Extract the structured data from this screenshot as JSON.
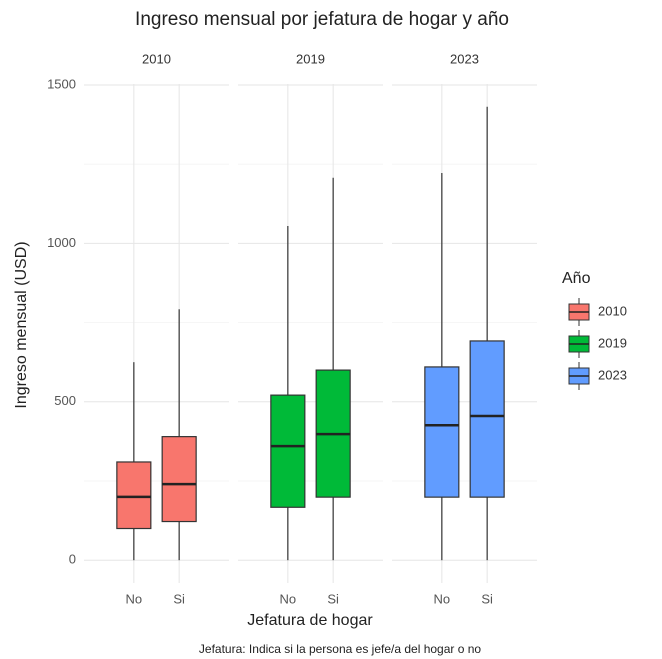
{
  "chart_data": {
    "type": "boxplot",
    "title": "Ingreso mensual por jefatura de hogar y año",
    "xlabel": "Jefatura de hogar",
    "ylabel": "Ingreso mensual (USD)",
    "caption": "Jefatura: Indica si la persona es jefe/a del hogar o no",
    "legend_title": "Año",
    "ylim": [
      -72,
      1503
    ],
    "yticks": [
      0,
      500,
      1000,
      1500
    ],
    "yminor": [
      250,
      750,
      1250
    ],
    "grid": true,
    "facets": [
      {
        "name": "2010",
        "color": "#F8766D",
        "categories": [
          "No",
          "Si"
        ],
        "boxes": [
          {
            "min": 0,
            "q1": 100,
            "median": 200,
            "q3": 310,
            "max": 625
          },
          {
            "min": 0,
            "q1": 122,
            "median": 240,
            "q3": 390,
            "max": 792
          }
        ]
      },
      {
        "name": "2019",
        "color": "#00BA38",
        "categories": [
          "No",
          "Si"
        ],
        "boxes": [
          {
            "min": 0,
            "q1": 167,
            "median": 360,
            "q3": 521,
            "max": 1055
          },
          {
            "min": 0,
            "q1": 199,
            "median": 398,
            "q3": 600,
            "max": 1207
          }
        ]
      },
      {
        "name": "2023",
        "color": "#619CFF",
        "categories": [
          "No",
          "Si"
        ],
        "boxes": [
          {
            "min": 0,
            "q1": 199,
            "median": 426,
            "q3": 610,
            "max": 1222
          },
          {
            "min": 0,
            "q1": 199,
            "median": 455,
            "q3": 692,
            "max": 1431
          }
        ]
      }
    ]
  }
}
